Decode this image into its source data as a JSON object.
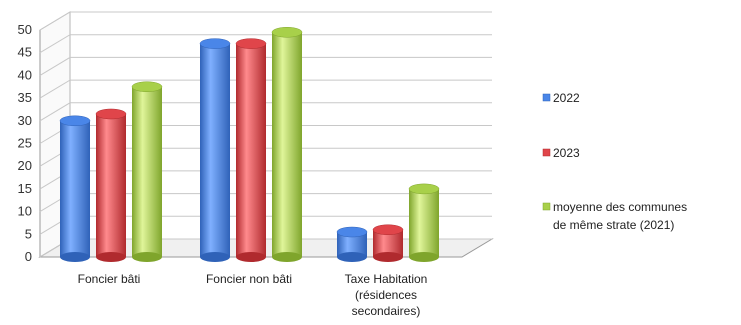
{
  "chart_data": {
    "type": "bar",
    "categories": [
      [
        "Foncier bâti"
      ],
      [
        "Foncier non bâti"
      ],
      [
        "Taxe Habitation",
        "(résidences",
        "secondaires)"
      ]
    ],
    "series": [
      {
        "name": "2022",
        "values": [
          30,
          47,
          5.5
        ],
        "color": "#4a86e8",
        "dark": "#2f62b8"
      },
      {
        "name": "2023",
        "values": [
          31.5,
          47,
          6
        ],
        "color": "#e0454a",
        "dark": "#b02a2e"
      },
      {
        "name": [
          "moyenne des communes",
          "de même strate (2021)"
        ],
        "values": [
          37.5,
          49.5,
          15
        ],
        "color": "#a8d04a",
        "dark": "#7fa52c"
      }
    ],
    "ylim": [
      0,
      50
    ],
    "yticks": [
      "0",
      "5",
      "10",
      "15",
      "20",
      "25",
      "30",
      "35",
      "40",
      "45",
      "50"
    ],
    "grid": true,
    "legend_position": "right"
  }
}
